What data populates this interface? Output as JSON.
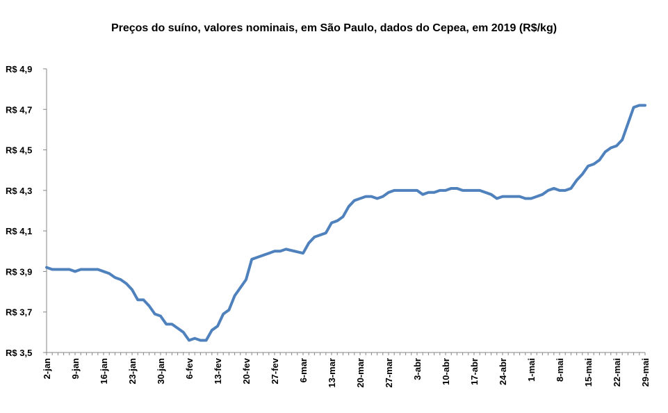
{
  "chart_data": {
    "type": "line",
    "title": "Preços do suíno, valores nominais, em São Paulo, dados do Cepea, em 2019 (R$/kg)",
    "xlabel": "",
    "ylabel": "",
    "ylim": [
      3.5,
      4.9
    ],
    "y_ticks": [
      3.5,
      3.7,
      3.9,
      4.1,
      4.3,
      4.5,
      4.7,
      4.9
    ],
    "y_tick_labels": [
      "R$ 3,5",
      "R$ 3,7",
      "R$ 3,9",
      "R$ 4,1",
      "R$ 4,3",
      "R$ 4,5",
      "R$ 4,7",
      "R$ 4,9"
    ],
    "x_tick_labels": [
      "2-jan",
      "9-jan",
      "16-jan",
      "23-jan",
      "30-jan",
      "6-fev",
      "13-fev",
      "20-fev",
      "27-fev",
      "6-mar",
      "13-mar",
      "20-mar",
      "27-mar",
      "3-abr",
      "10-abr",
      "17-abr",
      "24-abr",
      "1-mai",
      "8-mai",
      "15-mai",
      "22-mai",
      "29-mai"
    ],
    "grid": false,
    "legend": "none",
    "line_color": "#4F81BD",
    "series": [
      {
        "name": "",
        "points": [
          [
            "2-jan",
            3.92
          ],
          [
            "3-jan",
            3.91
          ],
          [
            "4-jan",
            3.91
          ],
          [
            "7-jan",
            3.91
          ],
          [
            "8-jan",
            3.91
          ],
          [
            "9-jan",
            3.9
          ],
          [
            "10-jan",
            3.91
          ],
          [
            "11-jan",
            3.91
          ],
          [
            "14-jan",
            3.91
          ],
          [
            "15-jan",
            3.91
          ],
          [
            "16-jan",
            3.9
          ],
          [
            "17-jan",
            3.89
          ],
          [
            "18-jan",
            3.87
          ],
          [
            "21-jan",
            3.86
          ],
          [
            "22-jan",
            3.84
          ],
          [
            "23-jan",
            3.81
          ],
          [
            "24-jan",
            3.76
          ],
          [
            "25-jan",
            3.76
          ],
          [
            "28-jan",
            3.73
          ],
          [
            "29-jan",
            3.69
          ],
          [
            "30-jan",
            3.68
          ],
          [
            "31-jan",
            3.64
          ],
          [
            "1-fev",
            3.64
          ],
          [
            "4-fev",
            3.62
          ],
          [
            "5-fev",
            3.6
          ],
          [
            "6-fev",
            3.56
          ],
          [
            "7-fev",
            3.57
          ],
          [
            "8-fev",
            3.56
          ],
          [
            "11-fev",
            3.56
          ],
          [
            "12-fev",
            3.61
          ],
          [
            "13-fev",
            3.63
          ],
          [
            "14-fev",
            3.69
          ],
          [
            "15-fev",
            3.71
          ],
          [
            "18-fev",
            3.78
          ],
          [
            "19-fev",
            3.82
          ],
          [
            "20-fev",
            3.86
          ],
          [
            "21-fev",
            3.96
          ],
          [
            "22-fev",
            3.97
          ],
          [
            "25-fev",
            3.98
          ],
          [
            "26-fev",
            3.99
          ],
          [
            "27-fev",
            4.0
          ],
          [
            "28-fev",
            4.0
          ],
          [
            "1-mar",
            4.01
          ],
          [
            "6-mar",
            3.99
          ],
          [
            "7-mar",
            4.04
          ],
          [
            "8-mar",
            4.07
          ],
          [
            "11-mar",
            4.08
          ],
          [
            "12-mar",
            4.09
          ],
          [
            "13-mar",
            4.14
          ],
          [
            "14-mar",
            4.15
          ],
          [
            "15-mar",
            4.17
          ],
          [
            "18-mar",
            4.22
          ],
          [
            "19-mar",
            4.25
          ],
          [
            "20-mar",
            4.26
          ],
          [
            "21-mar",
            4.27
          ],
          [
            "22-mar",
            4.27
          ],
          [
            "25-mar",
            4.26
          ],
          [
            "26-mar",
            4.27
          ],
          [
            "27-mar",
            4.29
          ],
          [
            "28-mar",
            4.3
          ],
          [
            "29-mar",
            4.3
          ],
          [
            "1-abr",
            4.3
          ],
          [
            "2-abr",
            4.3
          ],
          [
            "3-abr",
            4.3
          ],
          [
            "4-abr",
            4.28
          ],
          [
            "5-abr",
            4.29
          ],
          [
            "8-abr",
            4.29
          ],
          [
            "9-abr",
            4.3
          ],
          [
            "10-abr",
            4.3
          ],
          [
            "11-abr",
            4.31
          ],
          [
            "12-abr",
            4.31
          ],
          [
            "15-abr",
            4.3
          ],
          [
            "16-abr",
            4.3
          ],
          [
            "17-abr",
            4.3
          ],
          [
            "18-abr",
            4.3
          ],
          [
            "22-abr",
            4.28
          ],
          [
            "23-abr",
            4.26
          ],
          [
            "24-abr",
            4.27
          ],
          [
            "25-abr",
            4.27
          ],
          [
            "26-abr",
            4.27
          ],
          [
            "29-abr",
            4.27
          ],
          [
            "30-abr",
            4.26
          ],
          [
            "1-mai",
            4.26
          ],
          [
            "2-mai",
            4.27
          ],
          [
            "3-mai",
            4.28
          ],
          [
            "6-mai",
            4.3
          ],
          [
            "7-mai",
            4.31
          ],
          [
            "8-mai",
            4.3
          ],
          [
            "9-mai",
            4.3
          ],
          [
            "10-mai",
            4.31
          ],
          [
            "13-mai",
            4.35
          ],
          [
            "14-mai",
            4.38
          ],
          [
            "15-mai",
            4.42
          ],
          [
            "16-mai",
            4.43
          ],
          [
            "17-mai",
            4.45
          ],
          [
            "20-mai",
            4.49
          ],
          [
            "21-mai",
            4.51
          ],
          [
            "22-mai",
            4.52
          ],
          [
            "23-mai",
            4.55
          ],
          [
            "24-mai",
            4.63
          ],
          [
            "27-mai",
            4.71
          ],
          [
            "28-mai",
            4.72
          ],
          [
            "29-mai",
            4.72
          ]
        ]
      }
    ]
  }
}
